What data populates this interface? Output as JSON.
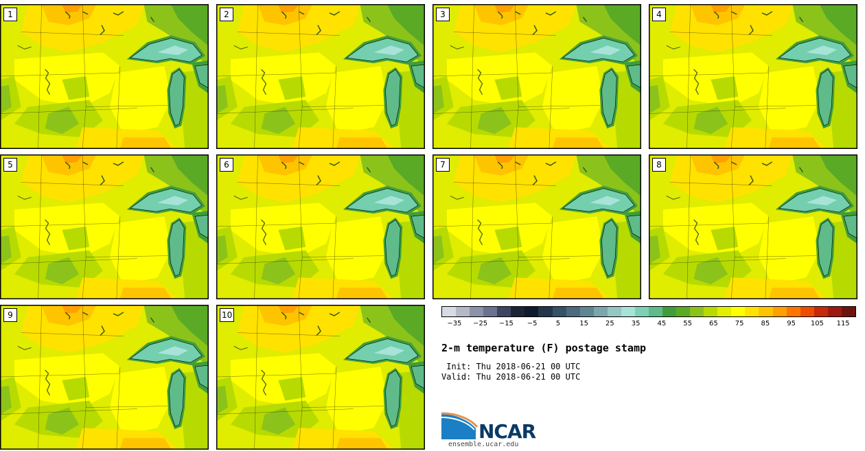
{
  "members": [
    {
      "label": "1"
    },
    {
      "label": "2"
    },
    {
      "label": "3"
    },
    {
      "label": "4"
    },
    {
      "label": "5"
    },
    {
      "label": "6"
    },
    {
      "label": "7"
    },
    {
      "label": "8"
    },
    {
      "label": "9"
    },
    {
      "label": "10"
    }
  ],
  "colorbar": {
    "colors": [
      "#d8dbe3",
      "#b5b9c6",
      "#8c93a8",
      "#6b7290",
      "#3d4560",
      "#1c2438",
      "#0e1a2e",
      "#24364c",
      "#355266",
      "#4a6b7d",
      "#5f8792",
      "#7aa6ac",
      "#96c6c4",
      "#a8e3d8",
      "#7ed0b4",
      "#5fbb8a",
      "#3f9e3a",
      "#5aaa26",
      "#8cc31a",
      "#b7db00",
      "#e3ee00",
      "#ffff00",
      "#ffe200",
      "#ffc400",
      "#ff9f00",
      "#ff7500",
      "#ee4d00",
      "#c62a0a",
      "#9e1a10",
      "#6e1410"
    ],
    "tick_labels": [
      "−35",
      "−25",
      "−15",
      "−5",
      "5",
      "15",
      "25",
      "35",
      "45",
      "55",
      "65",
      "75",
      "85",
      "95",
      "105",
      "115"
    ],
    "min": -40,
    "max": 120
  },
  "title": "2-m temperature (F) postage stamp",
  "init_line": " Init: Thu 2018-06-21 00 UTC",
  "valid_line": "Valid: Thu 2018-06-21 00 UTC",
  "logo": {
    "name": "NCAR",
    "url": "ensemble.ucar.edu"
  },
  "colors": {
    "lake": "#73cfae",
    "lake_deep": "#a8e3d8",
    "warm_orange": "#ffc400",
    "yellow": "#ffff00",
    "lime": "#e0ec00",
    "green": "#8cc31a"
  }
}
